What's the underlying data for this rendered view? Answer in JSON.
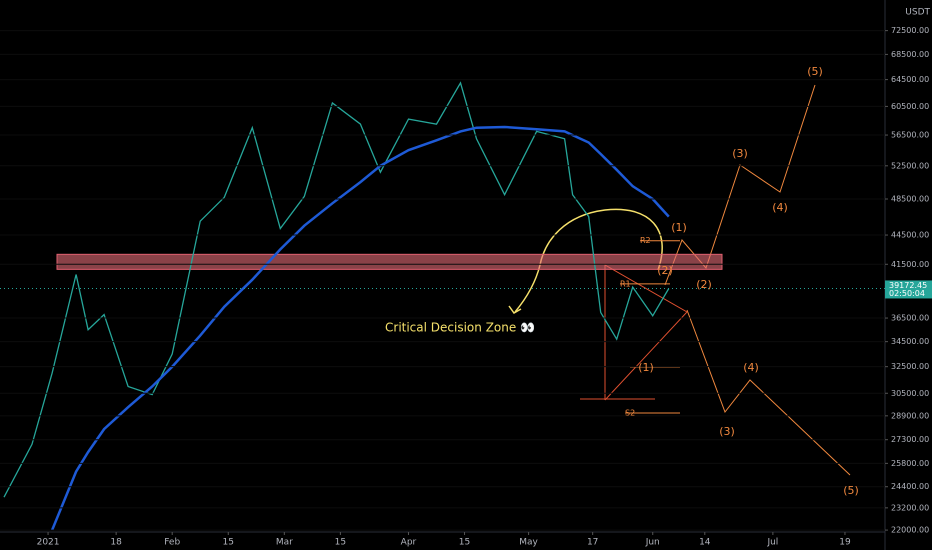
{
  "chart_data": {
    "type": "line",
    "log_scale": true,
    "quote": "USDT",
    "x": [
      "2020-12-21",
      "2020-12-28",
      "2021-01-02",
      "2021-01-08",
      "2021-01-11",
      "2021-01-15",
      "2021-01-21",
      "2021-01-27",
      "2021-02-01",
      "2021-02-08",
      "2021-02-14",
      "2021-02-21",
      "2021-02-28",
      "2021-03-06",
      "2021-03-13",
      "2021-03-20",
      "2021-03-25",
      "2021-04-01",
      "2021-04-08",
      "2021-04-14",
      "2021-04-18",
      "2021-04-25",
      "2021-05-03",
      "2021-05-10",
      "2021-05-12",
      "2021-05-16",
      "2021-05-19",
      "2021-05-23",
      "2021-05-27",
      "2021-06-01",
      "2021-06-05"
    ],
    "series": [
      {
        "color": "#26a69a",
        "values": [
          23800,
          27000,
          32000,
          40500,
          35500,
          36800,
          31000,
          30400,
          33500,
          46000,
          48700,
          57500,
          45200,
          48800,
          61000,
          58000,
          51700,
          58700,
          58000,
          64000,
          56000,
          49000,
          57000,
          56000,
          49000,
          46500,
          37000,
          34700,
          39300,
          36700,
          39172
        ]
      },
      {
        "color": "#1e5ad6",
        "values": [
          null,
          null,
          22000,
          25300,
          26500,
          28000,
          29500,
          31000,
          32500,
          35000,
          37500,
          40000,
          43000,
          45500,
          48000,
          50500,
          52500,
          54500,
          55800,
          57000,
          57500,
          57600,
          57300,
          57000,
          56500,
          55500,
          54000,
          52000,
          50000,
          48500,
          46500
        ]
      }
    ],
    "xlim": [
      "2020-12-20",
      "2021-07-29"
    ],
    "xticks": [
      {
        "value": "2021-01-01",
        "label": "2021"
      },
      {
        "value": "2021-01-18",
        "label": "18"
      },
      {
        "value": "2021-02-01",
        "label": "Feb"
      },
      {
        "value": "2021-02-15",
        "label": "15"
      },
      {
        "value": "2021-03-01",
        "label": "Mar"
      },
      {
        "value": "2021-03-15",
        "label": "15"
      },
      {
        "value": "2021-04-01",
        "label": "Apr"
      },
      {
        "value": "2021-04-15",
        "label": "15"
      },
      {
        "value": "2021-05-01",
        "label": "May"
      },
      {
        "value": "2021-05-17",
        "label": "17"
      },
      {
        "value": "2021-06-01",
        "label": "Jun"
      },
      {
        "value": "2021-06-14",
        "label": "14"
      },
      {
        "value": "2021-07-01",
        "label": "Jul"
      },
      {
        "value": "2021-07-19",
        "label": "19"
      }
    ],
    "ylim": [
      21900,
      78000
    ],
    "yticks": [
      {
        "value": 72500,
        "label": "72500.00"
      },
      {
        "value": 68500,
        "label": "68500.00"
      },
      {
        "value": 64500,
        "label": "64500.00"
      },
      {
        "value": 60500,
        "label": "60500.00"
      },
      {
        "value": 56500,
        "label": "56500.00"
      },
      {
        "value": 52500,
        "label": "52500.00"
      },
      {
        "value": 48500,
        "label": "48500.00"
      },
      {
        "value": 44500,
        "label": "44500.00"
      },
      {
        "value": 41500,
        "label": "41500.00"
      },
      {
        "value": 36500,
        "label": "36500.00"
      },
      {
        "value": 34500,
        "label": "34500.00"
      },
      {
        "value": 32500,
        "label": "32500.00"
      },
      {
        "value": 30500,
        "label": "30500.00"
      },
      {
        "value": 28900,
        "label": "28900.00"
      },
      {
        "value": 27300,
        "label": "27300.00"
      },
      {
        "value": 25800,
        "label": "25800.00"
      },
      {
        "value": 24400,
        "label": "24400.00"
      },
      {
        "value": 23200,
        "label": "23200.00"
      },
      {
        "value": 22000,
        "label": "22000.00"
      }
    ],
    "last_price": {
      "value": 39172.45,
      "label": "39172.45",
      "countdown": "02:50:04"
    },
    "zone": {
      "label": "Critical Decision Zone 👀",
      "low": 41000,
      "high": 42500
    },
    "levels": [
      {
        "label": "R2",
        "value": 43900
      },
      {
        "label": "R1",
        "value": 39600
      },
      {
        "label": "S2",
        "value": 29100
      }
    ],
    "bull_waves": [
      "(1)",
      "(2)",
      "(3)",
      "(4)",
      "(5)"
    ],
    "bear_waves": [
      "(1)",
      "(2)",
      "(3)",
      "(4)",
      "(5)"
    ]
  }
}
